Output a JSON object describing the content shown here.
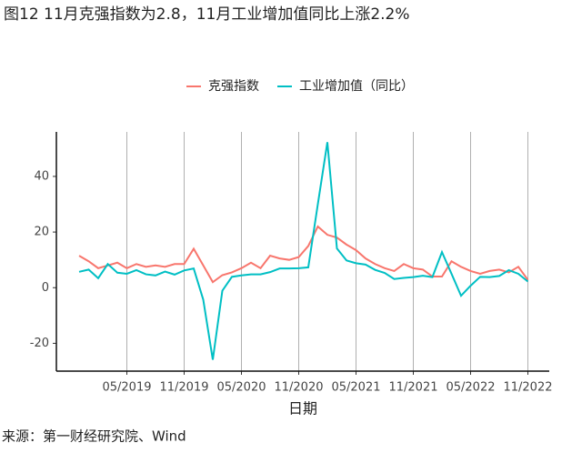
{
  "chart_data": {
    "type": "line",
    "title": "图12 11月克强指数为2.8，11月工业增加值同比上涨2.2%",
    "x_label": "日期",
    "source": "来源：第一财经研究院、Wind",
    "categories": [
      "12/2018",
      "01/2019",
      "02/2019",
      "03/2019",
      "04/2019",
      "05/2019",
      "06/2019",
      "07/2019",
      "08/2019",
      "09/2019",
      "10/2019",
      "11/2019",
      "12/2019",
      "01/2020",
      "02/2020",
      "03/2020",
      "04/2020",
      "05/2020",
      "06/2020",
      "07/2020",
      "08/2020",
      "09/2020",
      "10/2020",
      "11/2020",
      "12/2020",
      "01/2021",
      "02/2021",
      "03/2021",
      "04/2021",
      "05/2021",
      "06/2021",
      "07/2021",
      "08/2021",
      "09/2021",
      "10/2021",
      "11/2021",
      "12/2021",
      "01/2022",
      "02/2022",
      "03/2022",
      "04/2022",
      "05/2022",
      "06/2022",
      "07/2022",
      "08/2022",
      "09/2022",
      "10/2022",
      "11/2022"
    ],
    "series": [
      {
        "name": "克强指数",
        "color": "#f8766d",
        "values": [
          11.5,
          9.5,
          7,
          8,
          9,
          7,
          8.5,
          7.5,
          8,
          7.5,
          8.5,
          8.5,
          14,
          8,
          2,
          4.5,
          5.5,
          7,
          9,
          7,
          11.5,
          10.5,
          10,
          11,
          15,
          22,
          19,
          18,
          15.5,
          13.5,
          10.5,
          8.5,
          7,
          6,
          8.5,
          7,
          6.5,
          4,
          4,
          9.5,
          7.5,
          6,
          5,
          6,
          6.5,
          5.5,
          7.5,
          2.8
        ]
      },
      {
        "name": "工业增加值（同比）",
        "color": "#00bfc4",
        "values": [
          5.7,
          6.5,
          3.4,
          8.5,
          5.4,
          5,
          6.3,
          4.8,
          4.4,
          5.8,
          4.7,
          6.2,
          6.9,
          -4.3,
          -25.9,
          -1.1,
          3.9,
          4.4,
          4.8,
          4.8,
          5.6,
          6.9,
          6.9,
          7,
          7.3,
          30,
          52.3,
          14.1,
          9.8,
          8.8,
          8.3,
          6.4,
          5.3,
          3.1,
          3.5,
          3.8,
          4.3,
          3.8,
          12.8,
          5,
          -2.9,
          0.7,
          3.9,
          3.8,
          4.2,
          6.3,
          5,
          2.2
        ]
      }
    ],
    "xticks": [
      "05/2019",
      "11/2019",
      "05/2020",
      "11/2020",
      "05/2021",
      "11/2021",
      "05/2022",
      "11/2022"
    ],
    "ylim": [
      -30,
      56
    ],
    "yticks": [
      -20,
      0,
      20,
      40
    ],
    "grid": "x"
  }
}
